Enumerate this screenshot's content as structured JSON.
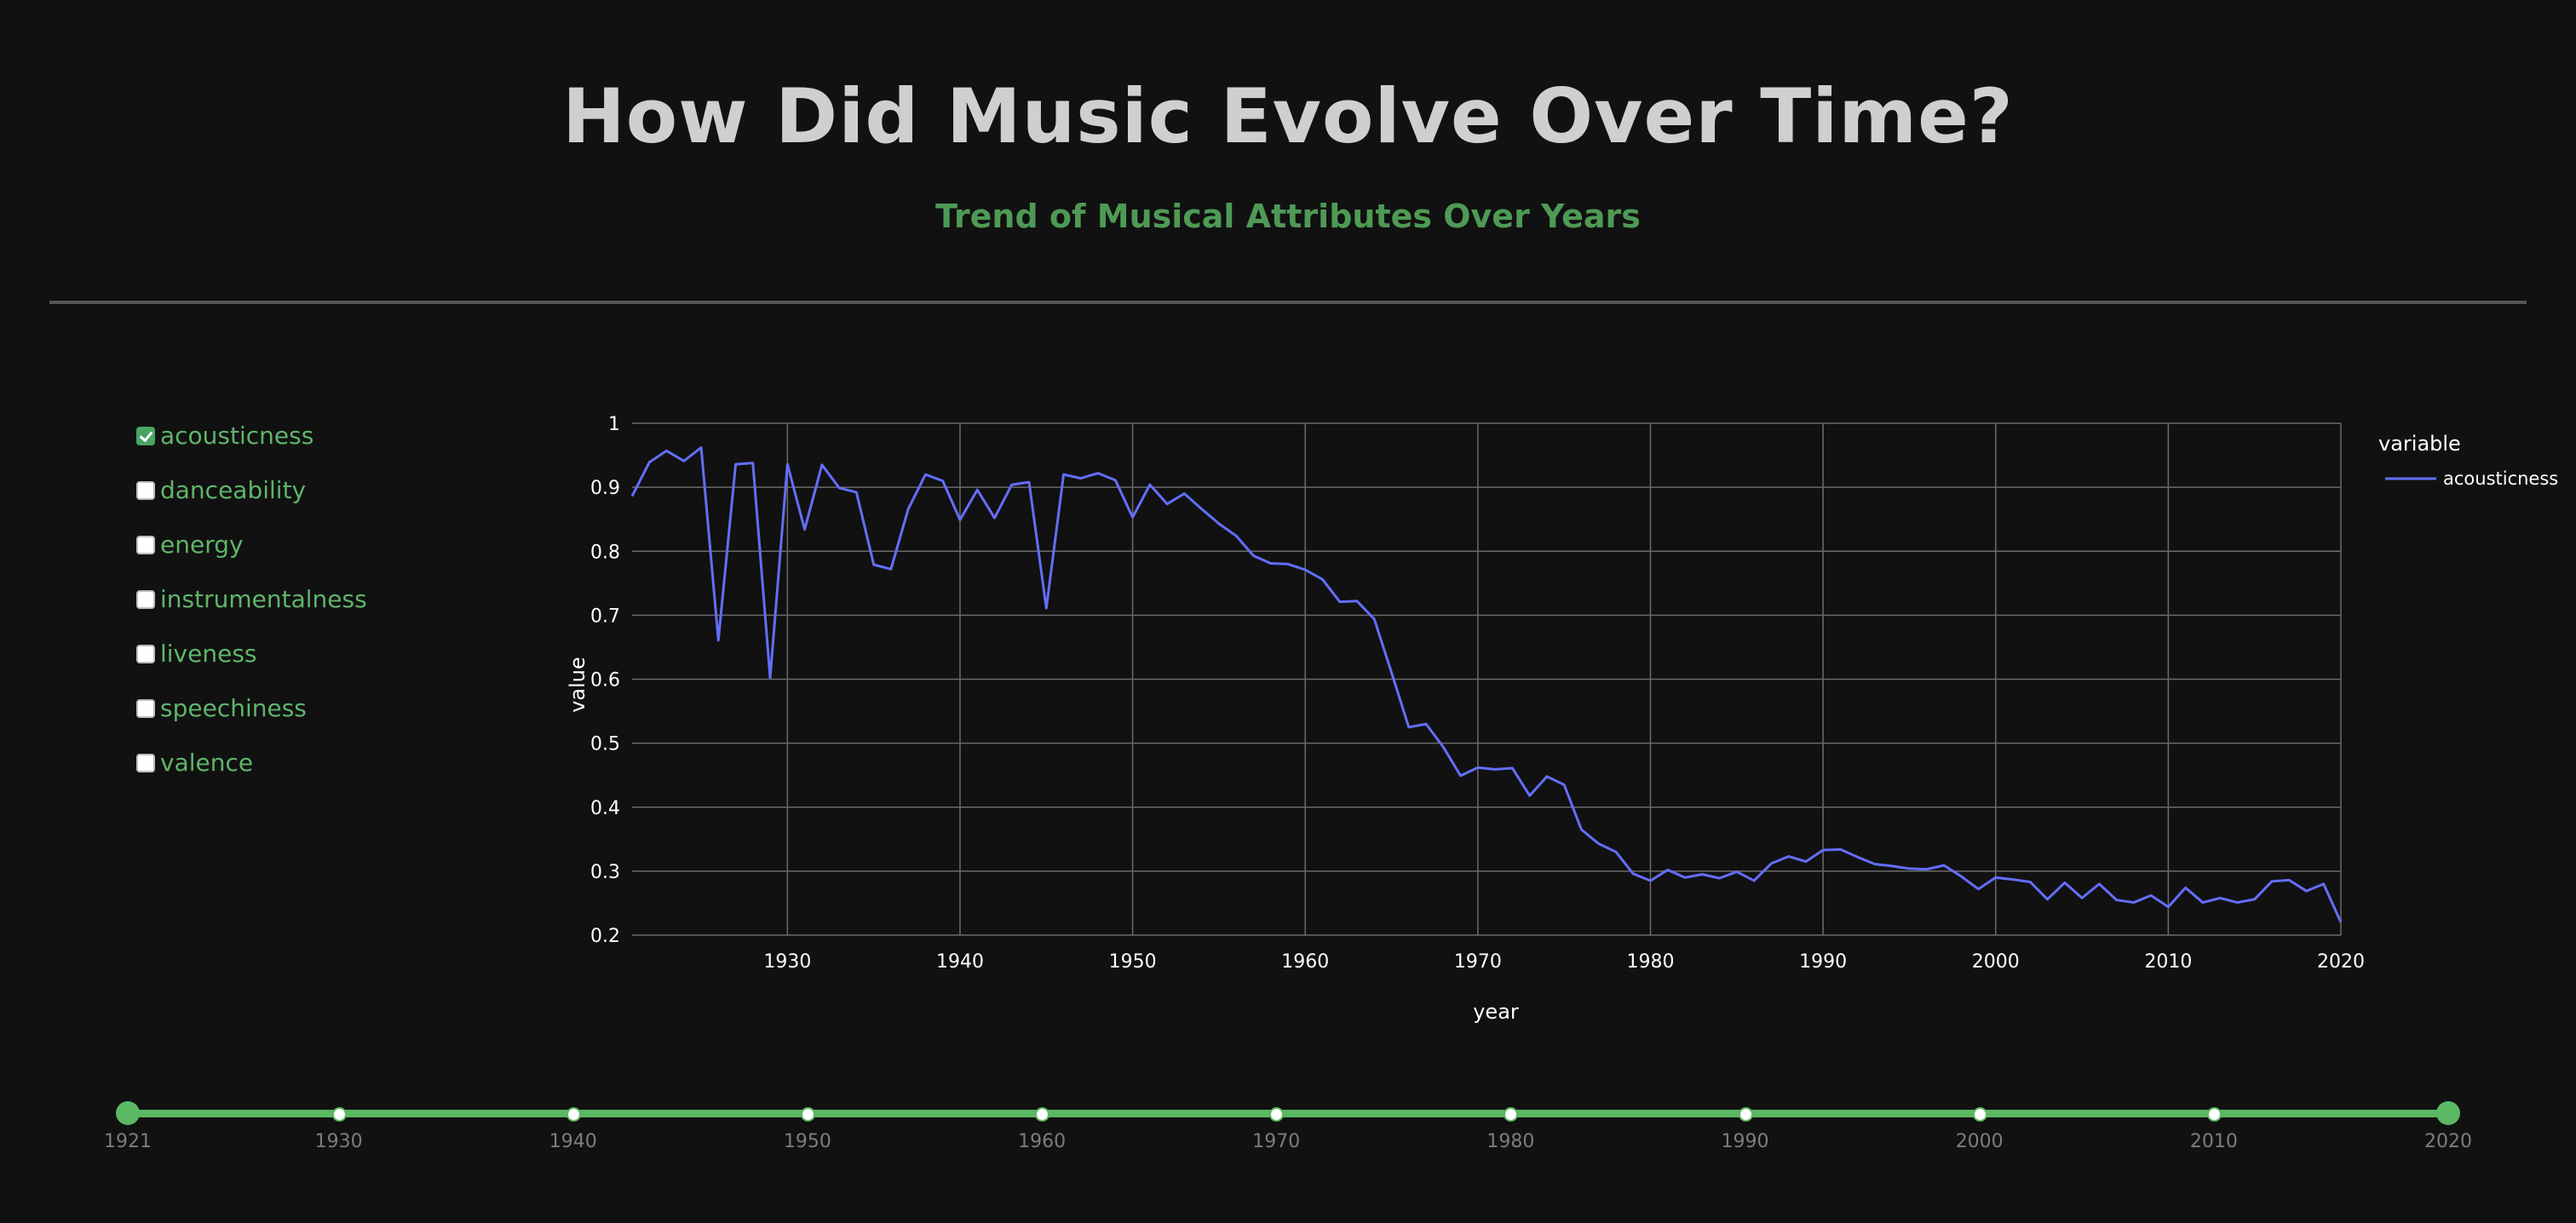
{
  "header": {
    "title": "How Did Music Evolve Over Time?",
    "subtitle": "Trend of Musical Attributes Over Years"
  },
  "attribute_checklist": {
    "items": [
      {
        "label": "acousticness",
        "checked": true
      },
      {
        "label": "danceability",
        "checked": false
      },
      {
        "label": "energy",
        "checked": false
      },
      {
        "label": "instrumentalness",
        "checked": false
      },
      {
        "label": "liveness",
        "checked": false
      },
      {
        "label": "speechiness",
        "checked": false
      },
      {
        "label": "valence",
        "checked": false
      }
    ]
  },
  "colors": {
    "background": "#111111",
    "accent_green": "#5bb863",
    "series_line": "#636efa",
    "grid": "#6b6b6b",
    "title": "#cfcfcf"
  },
  "chart_data": {
    "type": "line",
    "xlabel": "year",
    "ylabel": "value",
    "xlim": [
      1921,
      2020
    ],
    "ylim": [
      0.2,
      1.0
    ],
    "xticks": [
      "1930",
      "1940",
      "1950",
      "1960",
      "1970",
      "1980",
      "1990",
      "2000",
      "2010",
      "2020"
    ],
    "yticks": [
      "0.2",
      "0.3",
      "0.4",
      "0.5",
      "0.6",
      "0.7",
      "0.8",
      "0.9",
      "1"
    ],
    "grid": true,
    "legend": {
      "title": "variable",
      "placement": "top-right"
    },
    "series": [
      {
        "name": "acousticness",
        "x": [
          1921,
          1922,
          1923,
          1924,
          1925,
          1926,
          1927,
          1928,
          1929,
          1930,
          1931,
          1932,
          1933,
          1934,
          1935,
          1936,
          1937,
          1938,
          1939,
          1940,
          1941,
          1942,
          1943,
          1944,
          1945,
          1946,
          1947,
          1948,
          1949,
          1950,
          1951,
          1952,
          1953,
          1954,
          1955,
          1956,
          1957,
          1958,
          1959,
          1960,
          1961,
          1962,
          1963,
          1964,
          1965,
          1966,
          1967,
          1968,
          1969,
          1970,
          1971,
          1972,
          1973,
          1974,
          1975,
          1976,
          1977,
          1978,
          1979,
          1980,
          1981,
          1982,
          1983,
          1984,
          1985,
          1986,
          1987,
          1988,
          1989,
          1990,
          1991,
          1992,
          1993,
          1994,
          1995,
          1996,
          1997,
          1998,
          1999,
          2000,
          2001,
          2002,
          2003,
          2004,
          2005,
          2006,
          2007,
          2008,
          2009,
          2010,
          2011,
          2012,
          2013,
          2014,
          2015,
          2016,
          2017,
          2018,
          2019,
          2020
        ],
        "values": [
          0.886,
          0.939,
          0.957,
          0.941,
          0.962,
          0.661,
          0.936,
          0.938,
          0.602,
          0.936,
          0.834,
          0.935,
          0.899,
          0.892,
          0.779,
          0.772,
          0.866,
          0.92,
          0.91,
          0.849,
          0.896,
          0.852,
          0.904,
          0.908,
          0.711,
          0.92,
          0.914,
          0.922,
          0.911,
          0.853,
          0.904,
          0.874,
          0.89,
          0.866,
          0.843,
          0.824,
          0.793,
          0.781,
          0.78,
          0.771,
          0.756,
          0.721,
          0.722,
          0.694,
          0.61,
          0.525,
          0.53,
          0.494,
          0.449,
          0.462,
          0.459,
          0.461,
          0.418,
          0.448,
          0.435,
          0.365,
          0.343,
          0.33,
          0.296,
          0.285,
          0.302,
          0.29,
          0.295,
          0.289,
          0.299,
          0.285,
          0.312,
          0.323,
          0.315,
          0.333,
          0.334,
          0.322,
          0.311,
          0.308,
          0.304,
          0.303,
          0.309,
          0.292,
          0.272,
          0.29,
          0.287,
          0.283,
          0.256,
          0.282,
          0.258,
          0.28,
          0.255,
          0.251,
          0.262,
          0.244,
          0.274,
          0.251,
          0.258,
          0.251,
          0.256,
          0.284,
          0.286,
          0.269,
          0.28,
          0.22
        ]
      }
    ]
  },
  "year_slider": {
    "min": 1921,
    "max": 2020,
    "selected_range": [
      1921,
      2020
    ],
    "marks": [
      {
        "label": "1921",
        "year": 1921
      },
      {
        "label": "1930",
        "year": 1930
      },
      {
        "label": "1940",
        "year": 1940
      },
      {
        "label": "1950",
        "year": 1950
      },
      {
        "label": "1960",
        "year": 1960
      },
      {
        "label": "1970",
        "year": 1970
      },
      {
        "label": "1980",
        "year": 1980
      },
      {
        "label": "1990",
        "year": 1990
      },
      {
        "label": "2000",
        "year": 2000
      },
      {
        "label": "2010",
        "year": 2010
      },
      {
        "label": "2020",
        "year": 2020
      }
    ]
  }
}
